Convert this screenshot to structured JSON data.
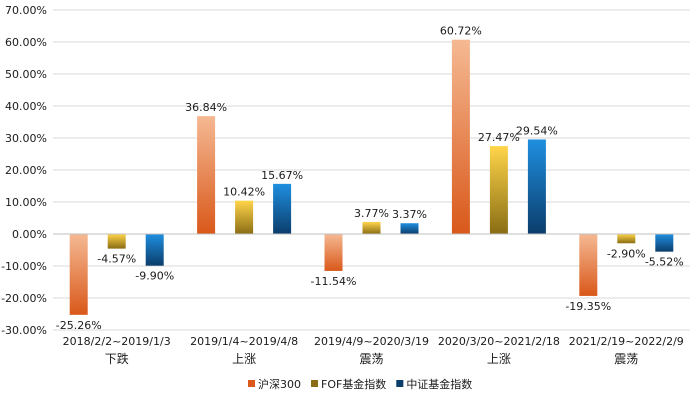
{
  "chart_data": {
    "type": "bar",
    "categories": [
      {
        "period": "2018/2/2~2019/1/3",
        "phase": "下跌"
      },
      {
        "period": "2019/1/4~2019/4/8",
        "phase": "上涨"
      },
      {
        "period": "2019/4/9~2020/3/19",
        "phase": "震荡"
      },
      {
        "period": "2020/3/20~2021/2/18",
        "phase": "上涨"
      },
      {
        "period": "2021/2/19~2022/2/9",
        "phase": "震荡"
      }
    ],
    "series": [
      {
        "name": "沪深300",
        "values": [
          -25.26,
          36.84,
          -11.54,
          60.72,
          -19.35
        ],
        "labels": [
          "-25.26%",
          "36.84%",
          "-11.54%",
          "60.72%",
          "-19.35%"
        ],
        "color_top": "#f5b993",
        "color_bottom": "#d9581a"
      },
      {
        "name": "FOF基金指数",
        "values": [
          -4.57,
          10.42,
          3.77,
          27.47,
          -2.9
        ],
        "labels": [
          "-4.57%",
          "10.42%",
          "3.77%",
          "27.47%",
          "-2.90%"
        ],
        "color_top": "#ffd54a",
        "color_bottom": "#8a6d14"
      },
      {
        "name": "中证基金指数",
        "values": [
          -9.9,
          15.67,
          3.37,
          29.54,
          -5.52
        ],
        "labels": [
          "-9.90%",
          "15.67%",
          "3.37%",
          "29.54%",
          "-5.52%"
        ],
        "color_top": "#1f8fe0",
        "color_bottom": "#0b3d6b"
      }
    ],
    "ylim": [
      -30,
      70
    ],
    "yticks": [
      70,
      60,
      50,
      40,
      30,
      20,
      10,
      0,
      -10,
      -20,
      -30
    ],
    "ytick_labels": [
      "70.00%",
      "60.00%",
      "50.00%",
      "40.00%",
      "30.00%",
      "20.00%",
      "10.00%",
      "0.00%",
      "-10.00%",
      "-20.00%",
      "-30.00%"
    ],
    "grid": true,
    "legend_position": "bottom",
    "title": "",
    "xlabel": "",
    "ylabel": ""
  }
}
